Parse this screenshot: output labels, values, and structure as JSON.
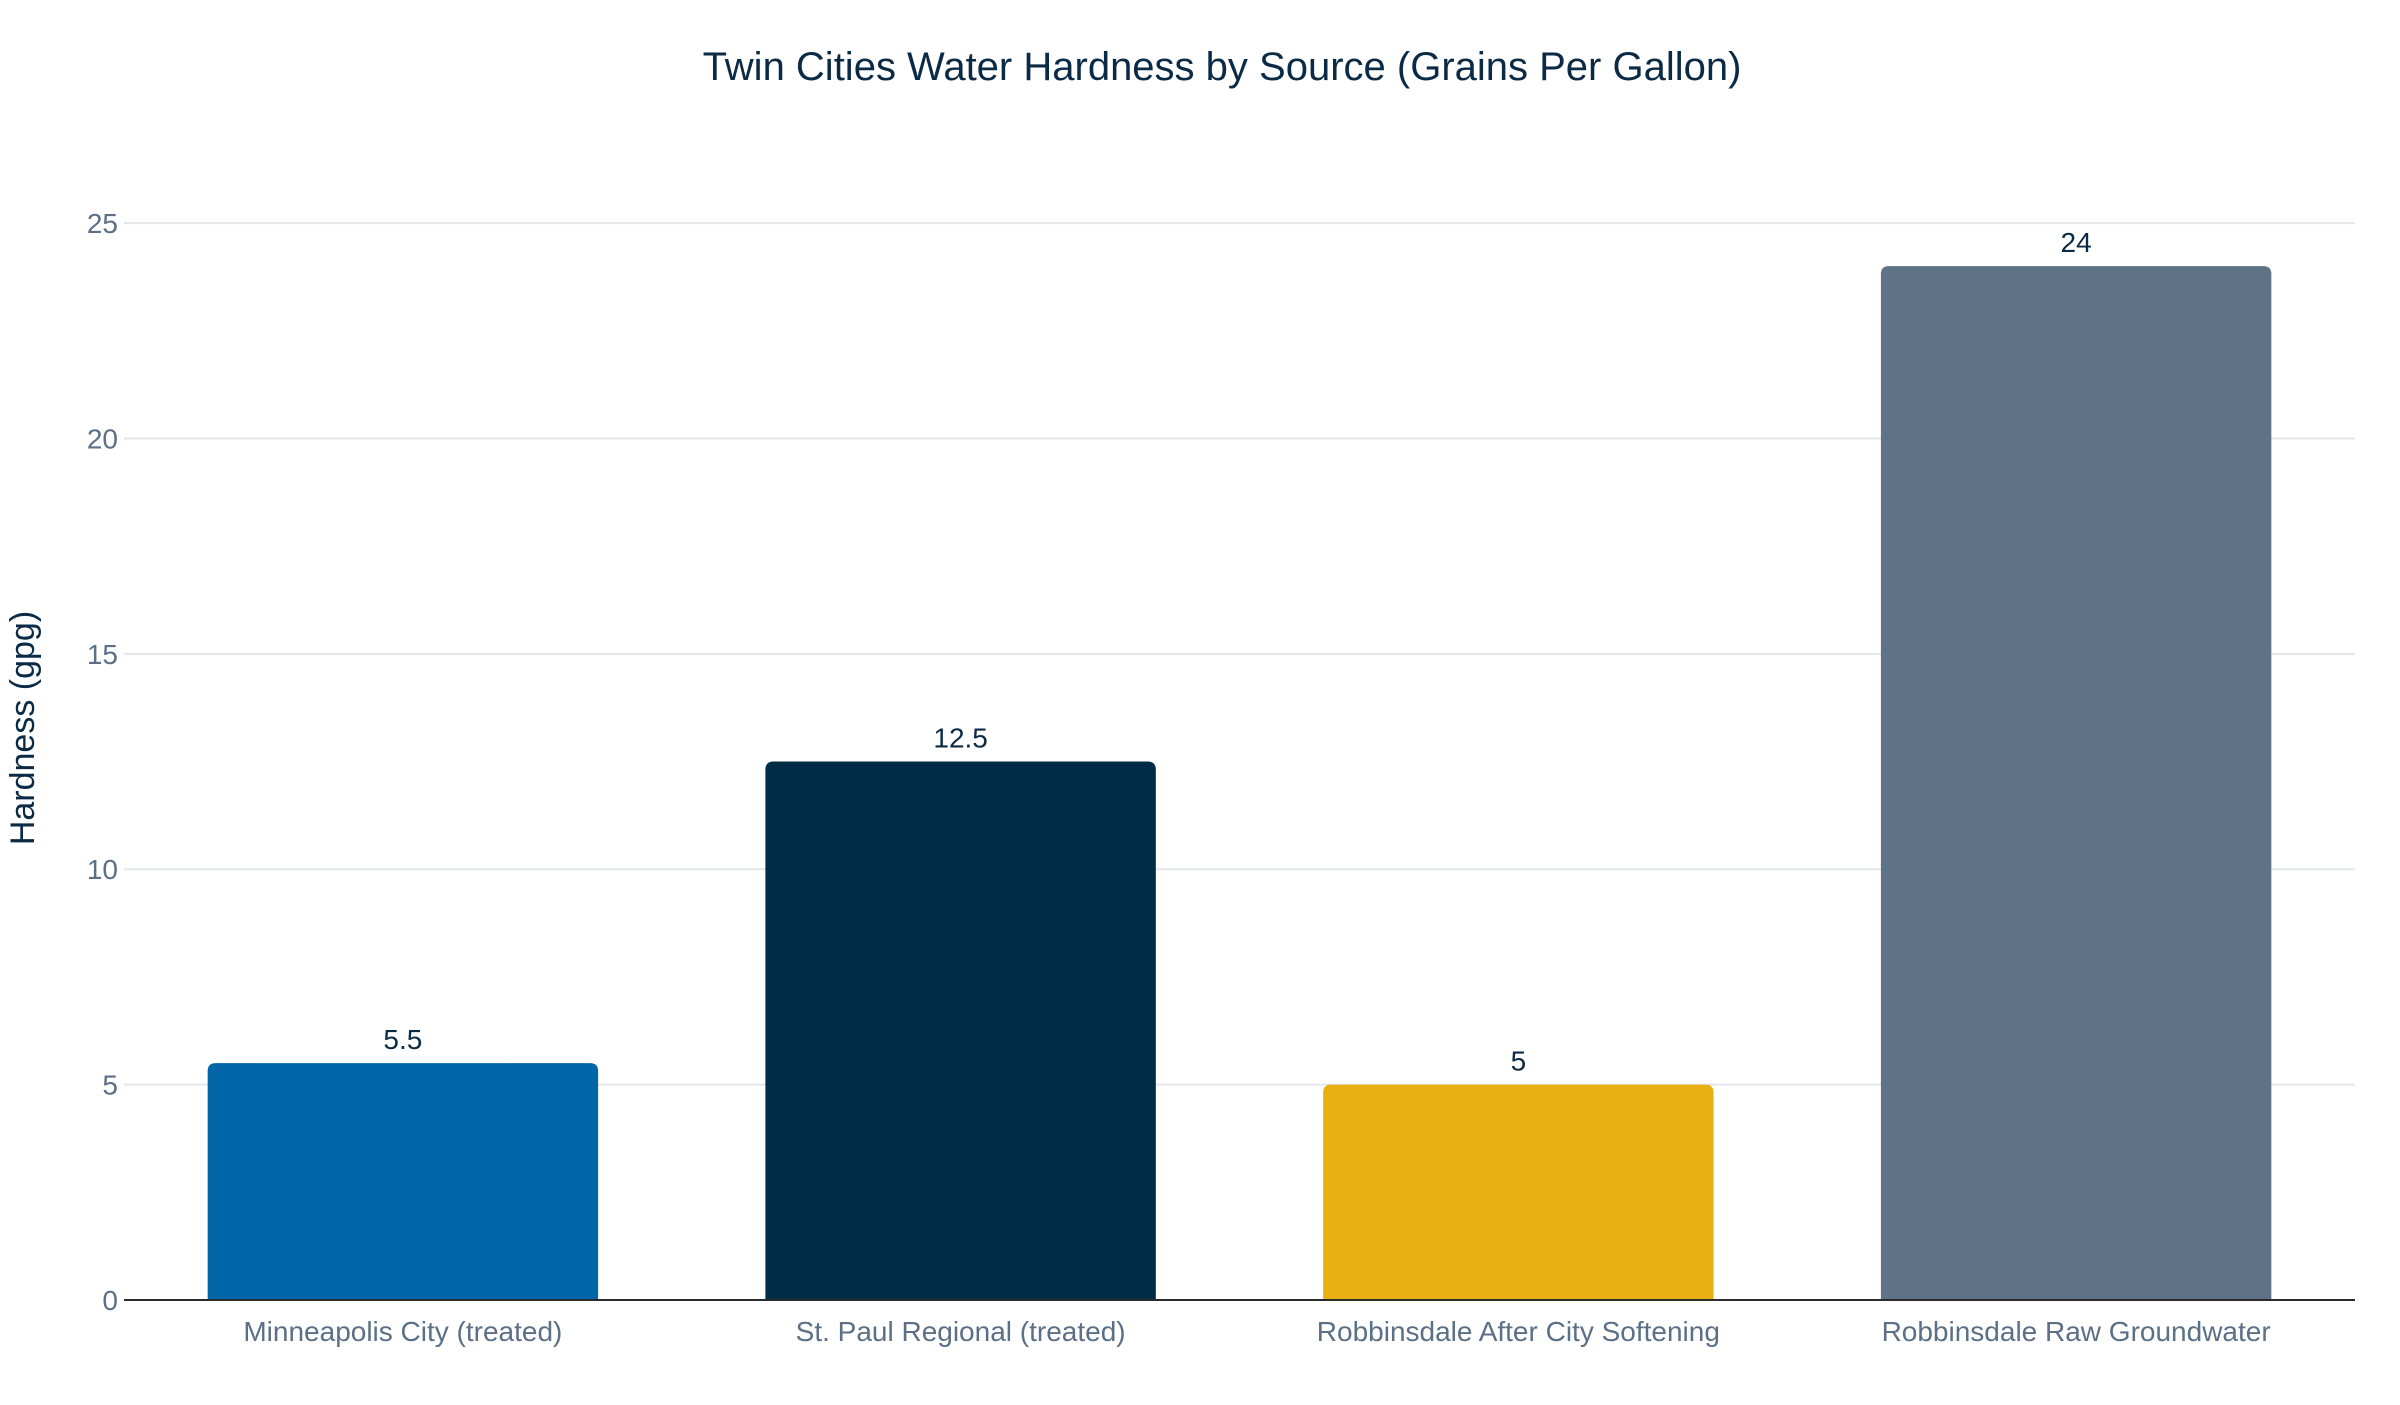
{
  "chart_data": {
    "type": "bar",
    "title": "Twin Cities Water Hardness by Source (Grains Per Gallon)",
    "xlabel": "",
    "ylabel": "Hardness (gpg)",
    "ylim": [
      0,
      26
    ],
    "yticks": [
      0,
      5,
      10,
      15,
      20,
      25
    ],
    "grid": true,
    "categories": [
      "Minneapolis City (treated)",
      "St. Paul Regional (treated)",
      "Robbinsdale After City Softening",
      "Robbinsdale Raw Groundwater"
    ],
    "values": [
      5.5,
      12.5,
      5,
      24
    ],
    "value_labels": [
      "5.5",
      "12.5",
      "5",
      "24"
    ],
    "colors": [
      "#0066a8",
      "#002c46",
      "#e8b012",
      "#5e7386"
    ]
  }
}
